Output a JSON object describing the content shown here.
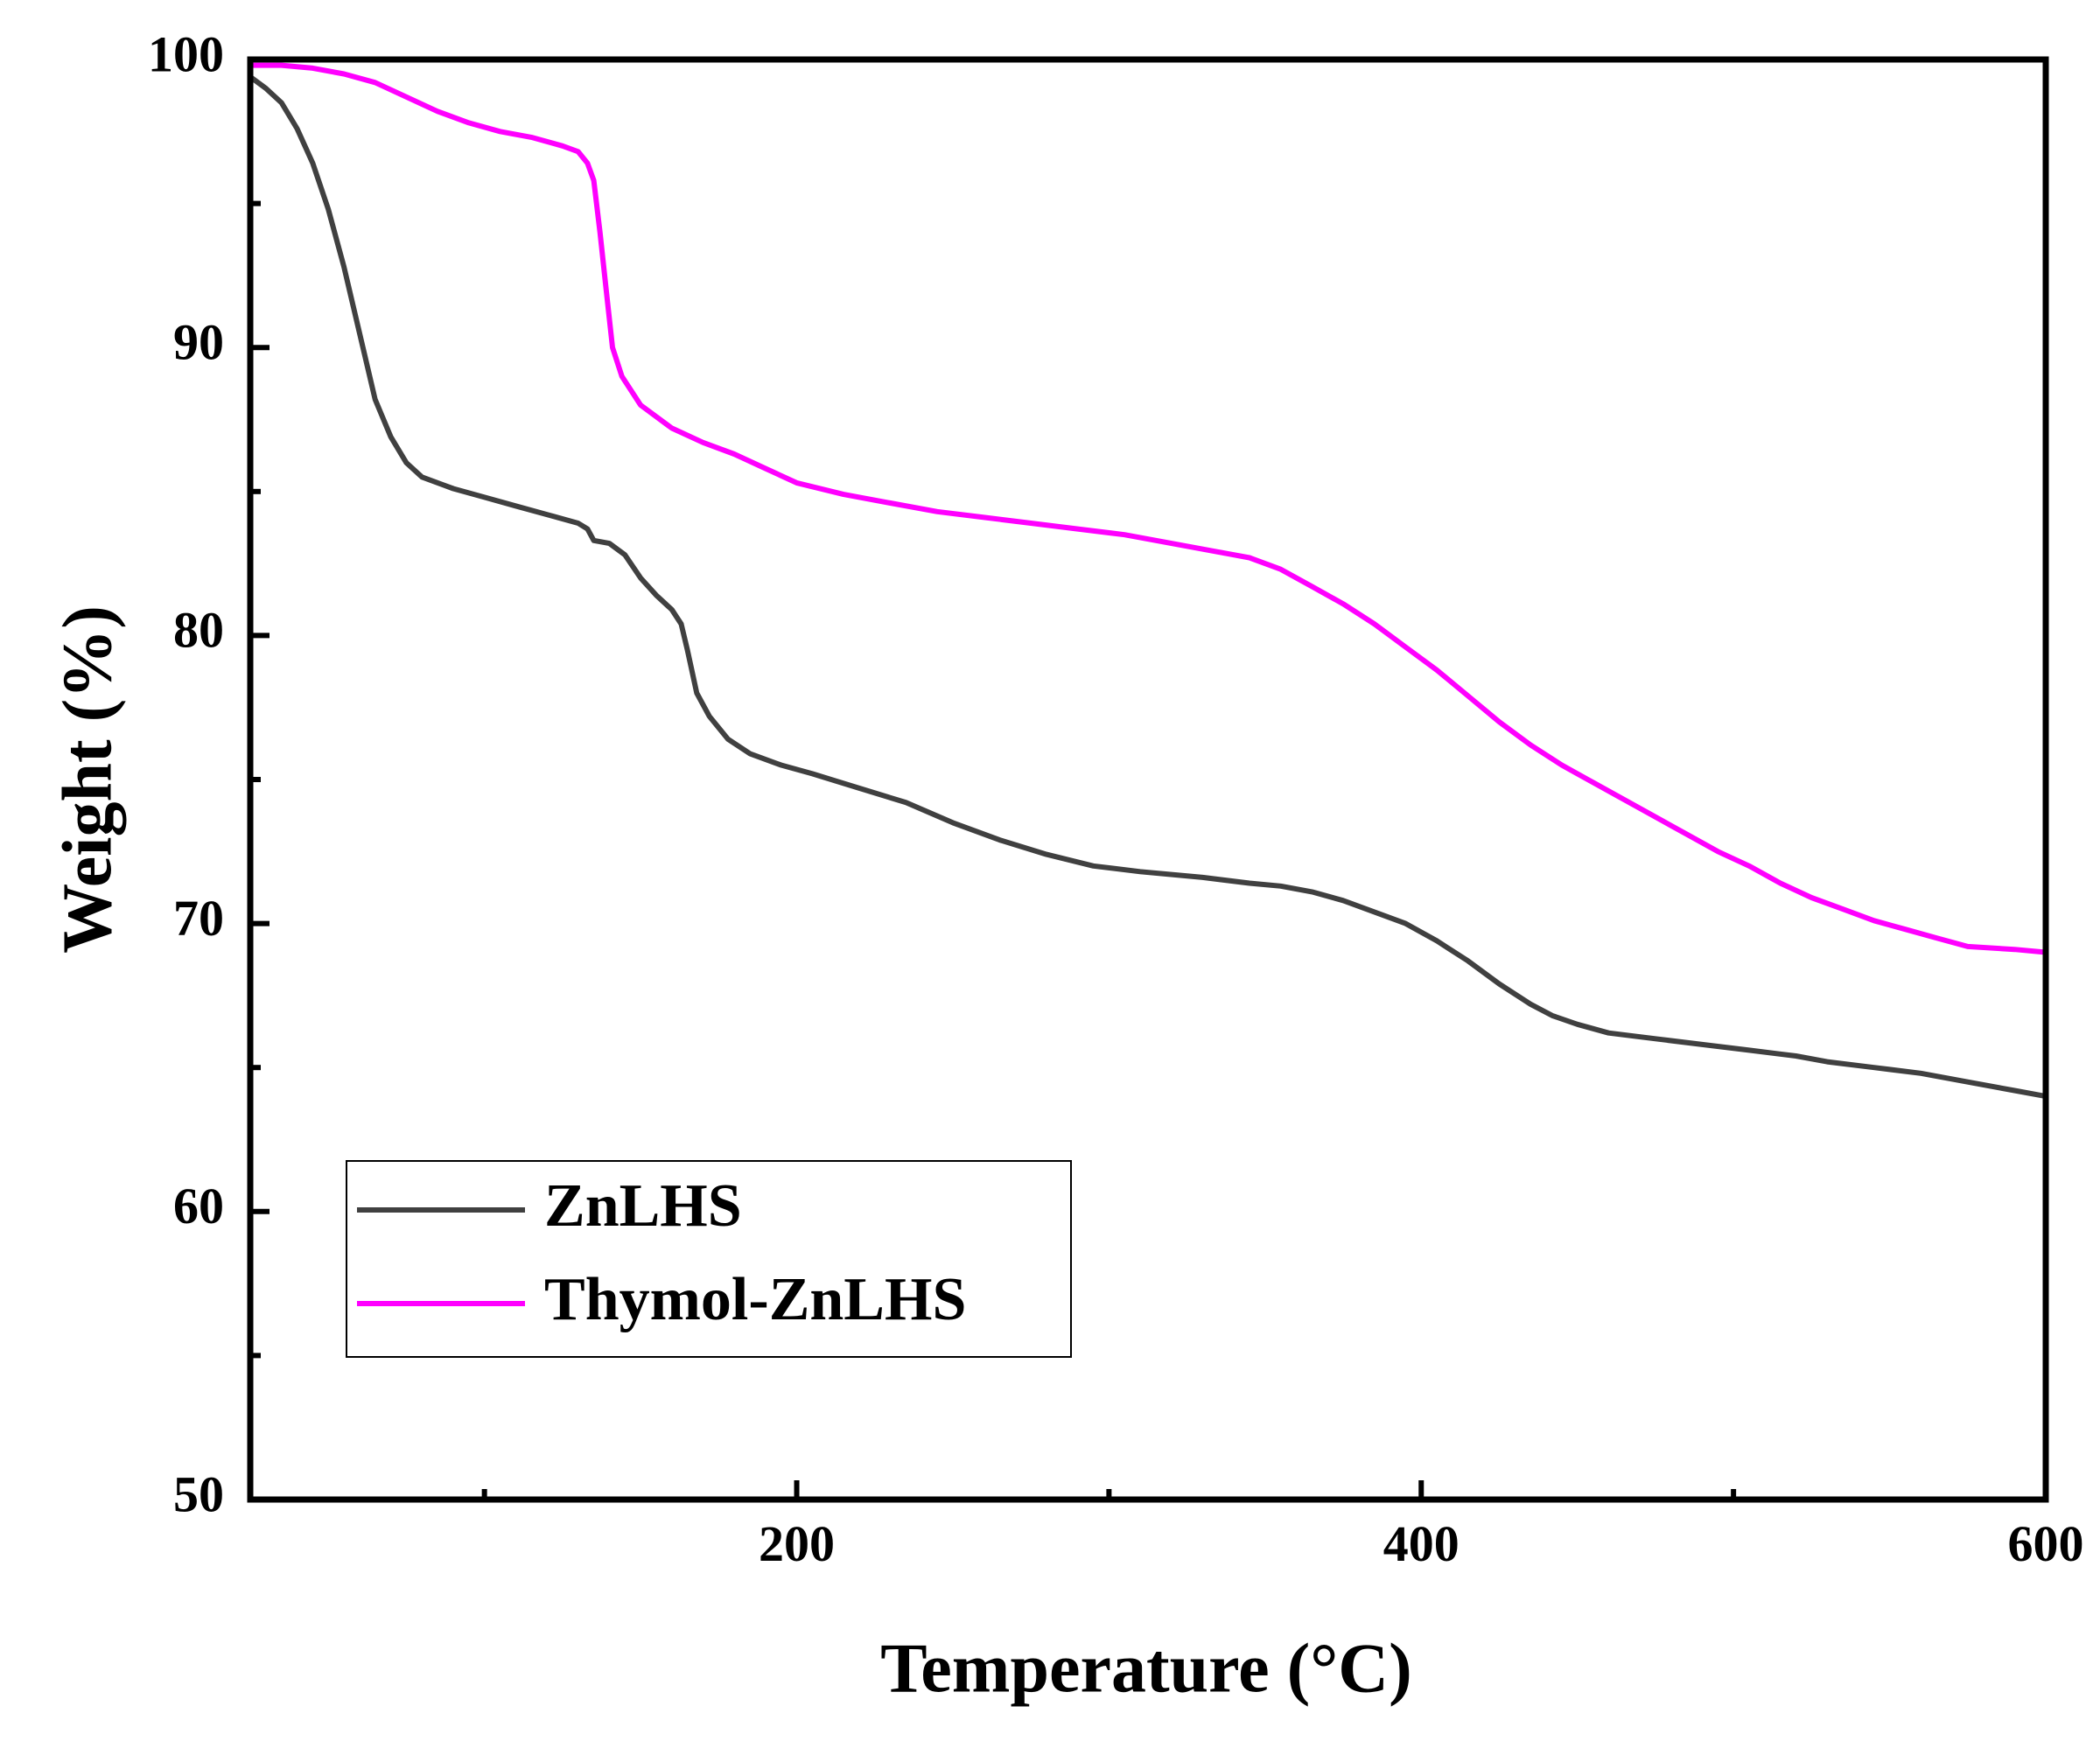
{
  "chart_data": {
    "type": "line",
    "title": "",
    "xlabel": "Temperature (°C)",
    "ylabel": "Weight (%)",
    "xlim": [
      25,
      600
    ],
    "ylim": [
      50,
      100
    ],
    "x_ticks_labeled": [
      200,
      400,
      600
    ],
    "x_ticks_minor": [
      100,
      300,
      500
    ],
    "y_ticks_labeled": [
      50,
      60,
      70,
      80,
      90,
      100
    ],
    "y_ticks_minor": [
      55,
      65,
      75,
      85,
      95
    ],
    "grid": false,
    "legend_position": "bottom-left",
    "series": [
      {
        "name": "ZnLHS",
        "color": "#404040",
        "points": [
          [
            25,
            99.4
          ],
          [
            30,
            99.0
          ],
          [
            35,
            98.5
          ],
          [
            40,
            97.6
          ],
          [
            45,
            96.4
          ],
          [
            50,
            94.8
          ],
          [
            55,
            92.8
          ],
          [
            60,
            90.5
          ],
          [
            65,
            88.2
          ],
          [
            70,
            86.9
          ],
          [
            75,
            86.0
          ],
          [
            80,
            85.5
          ],
          [
            90,
            85.1
          ],
          [
            100,
            84.8
          ],
          [
            110,
            84.5
          ],
          [
            120,
            84.2
          ],
          [
            130,
            83.9
          ],
          [
            133,
            83.7
          ],
          [
            135,
            83.3
          ],
          [
            140,
            83.2
          ],
          [
            145,
            82.8
          ],
          [
            150,
            82.0
          ],
          [
            155,
            81.4
          ],
          [
            160,
            80.9
          ],
          [
            163,
            80.4
          ],
          [
            165,
            79.5
          ],
          [
            168,
            78.0
          ],
          [
            172,
            77.2
          ],
          [
            178,
            76.4
          ],
          [
            185,
            75.9
          ],
          [
            195,
            75.5
          ],
          [
            205,
            75.2
          ],
          [
            220,
            74.7
          ],
          [
            235,
            74.2
          ],
          [
            250,
            73.5
          ],
          [
            265,
            72.9
          ],
          [
            280,
            72.4
          ],
          [
            295,
            72.0
          ],
          [
            310,
            71.8
          ],
          [
            330,
            71.6
          ],
          [
            345,
            71.4
          ],
          [
            355,
            71.3
          ],
          [
            365,
            71.1
          ],
          [
            375,
            70.8
          ],
          [
            385,
            70.4
          ],
          [
            395,
            70.0
          ],
          [
            405,
            69.4
          ],
          [
            415,
            68.7
          ],
          [
            425,
            67.9
          ],
          [
            435,
            67.2
          ],
          [
            442,
            66.8
          ],
          [
            450,
            66.5
          ],
          [
            460,
            66.2
          ],
          [
            475,
            66.0
          ],
          [
            490,
            65.8
          ],
          [
            505,
            65.6
          ],
          [
            520,
            65.4
          ],
          [
            530,
            65.2
          ],
          [
            545,
            65.0
          ],
          [
            560,
            64.8
          ],
          [
            575,
            64.5
          ],
          [
            590,
            64.2
          ],
          [
            600,
            64.0
          ]
        ]
      },
      {
        "name": "Thymol-ZnLHS",
        "color": "#FF00FF",
        "points": [
          [
            25,
            99.8
          ],
          [
            35,
            99.8
          ],
          [
            45,
            99.7
          ],
          [
            55,
            99.5
          ],
          [
            65,
            99.2
          ],
          [
            75,
            98.7
          ],
          [
            85,
            98.2
          ],
          [
            95,
            97.8
          ],
          [
            105,
            97.5
          ],
          [
            115,
            97.3
          ],
          [
            125,
            97.0
          ],
          [
            130,
            96.8
          ],
          [
            133,
            96.4
          ],
          [
            135,
            95.8
          ],
          [
            137,
            94.0
          ],
          [
            139,
            92.0
          ],
          [
            141,
            90.0
          ],
          [
            144,
            89.0
          ],
          [
            150,
            88.0
          ],
          [
            160,
            87.2
          ],
          [
            170,
            86.7
          ],
          [
            180,
            86.3
          ],
          [
            190,
            85.8
          ],
          [
            200,
            85.3
          ],
          [
            215,
            84.9
          ],
          [
            230,
            84.6
          ],
          [
            245,
            84.3
          ],
          [
            260,
            84.1
          ],
          [
            275,
            83.9
          ],
          [
            290,
            83.7
          ],
          [
            305,
            83.5
          ],
          [
            320,
            83.2
          ],
          [
            335,
            82.9
          ],
          [
            345,
            82.7
          ],
          [
            355,
            82.3
          ],
          [
            365,
            81.7
          ],
          [
            375,
            81.1
          ],
          [
            385,
            80.4
          ],
          [
            395,
            79.6
          ],
          [
            405,
            78.8
          ],
          [
            415,
            77.9
          ],
          [
            425,
            77.0
          ],
          [
            435,
            76.2
          ],
          [
            445,
            75.5
          ],
          [
            455,
            74.9
          ],
          [
            465,
            74.3
          ],
          [
            475,
            73.7
          ],
          [
            485,
            73.1
          ],
          [
            495,
            72.5
          ],
          [
            505,
            72.0
          ],
          [
            515,
            71.4
          ],
          [
            525,
            70.9
          ],
          [
            535,
            70.5
          ],
          [
            545,
            70.1
          ],
          [
            555,
            69.8
          ],
          [
            565,
            69.5
          ],
          [
            575,
            69.2
          ],
          [
            590,
            69.1
          ],
          [
            600,
            69.0
          ]
        ]
      }
    ]
  }
}
